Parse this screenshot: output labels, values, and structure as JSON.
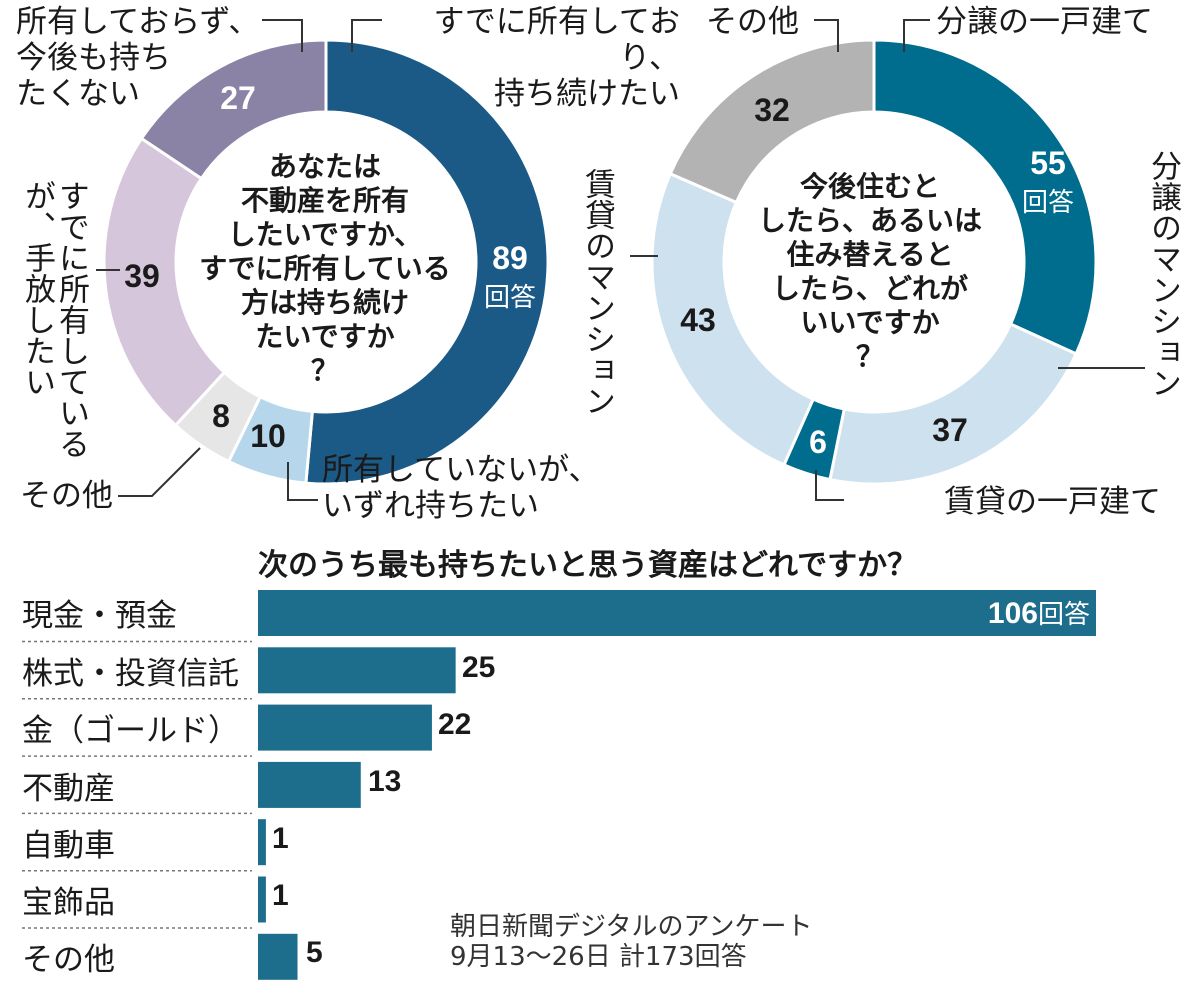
{
  "colors": {
    "navy": "#1b5a87",
    "teal": "#006d8f",
    "purple_dark": "#8b83a5",
    "purple_light": "#d6c6dc",
    "light_gray": "#e6e6e6",
    "light_blue": "#b6d6ec",
    "pale_blue": "#cde1ef",
    "gray": "#b3b3b3",
    "bar": "#1c6e8c"
  },
  "chart_data": [
    {
      "type": "pie",
      "title": "あなたは\n不動産を所有\nしたいですか、\nすでに所有している\n方は持ち続け\nたいですか\n？",
      "unit": "回答",
      "slices": [
        {
          "label": "すでに所有しており、\n持ち続けたい",
          "value": 89
        },
        {
          "label": "所有していないが、\nいずれ持ちたい",
          "value": 10
        },
        {
          "label": "その他",
          "value": 8
        },
        {
          "label": "すでに所有しているが、手放したい",
          "value": 39
        },
        {
          "label": "所有しておらず、\n今後も持ち\nたくない",
          "value": 27
        }
      ]
    },
    {
      "type": "pie",
      "title": "今後住むと\nしたら、あるいは\n住み替えると\nしたら、どれが\nいいですか\n？",
      "unit": "回答",
      "slices": [
        {
          "label": "分譲の一戸建て",
          "value": 55
        },
        {
          "label": "分譲のマンション",
          "value": 37
        },
        {
          "label": "賃貸の一戸建て",
          "value": 6
        },
        {
          "label": "賃貸のマンション",
          "value": 43
        },
        {
          "label": "その他",
          "value": 32
        }
      ]
    },
    {
      "type": "bar",
      "title": "次のうち最も持ちたいと思う資産はどれですか？",
      "unit": "回答",
      "categories": [
        "現金・預金",
        "株式・投資信託",
        "金（ゴールド）",
        "不動産",
        "自動車",
        "宝飾品",
        "その他"
      ],
      "values": [
        106,
        25,
        22,
        13,
        1,
        1,
        5
      ]
    }
  ],
  "footnote": "朝日新聞デジタルのアンケート\n9月13～26日  計173回答"
}
